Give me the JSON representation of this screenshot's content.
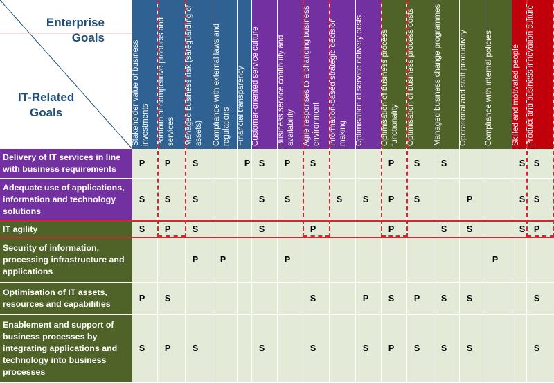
{
  "corner": {
    "enterprise_goals": "Enterprise\nGoals",
    "it_related_goals": "IT-Related\nGoals"
  },
  "colors": {
    "blue": "#2f6293",
    "purple": "#7330a0",
    "green": "#4f6228",
    "red": "#c0000b",
    "cell_bg": "#e3ead8",
    "row_green": "#4f6228",
    "row_purple": "#7330a0",
    "dash": "#e0202a"
  },
  "columns": [
    {
      "label": "Stakeholder value of business investments",
      "color": "blue"
    },
    {
      "label": "Portfolio of competitive products and services",
      "color": "blue"
    },
    {
      "label": "Managed business risk (safeguarding of assets)",
      "color": "blue"
    },
    {
      "label": "Compliance with external laws and regulations",
      "color": "blue"
    },
    {
      "label": "Financial transparency",
      "color": "blue"
    },
    {
      "label": "Customer-oriented service culture",
      "color": "purple"
    },
    {
      "label": "Business service continuity and availability",
      "color": "purple"
    },
    {
      "label": "Agile responses to a changing business environment",
      "color": "purple"
    },
    {
      "label": "Information-based strategic decision making",
      "color": "purple"
    },
    {
      "label": "Optimisation of service delivery costs",
      "color": "purple"
    },
    {
      "label": "Optimisation of business process functionality",
      "color": "green"
    },
    {
      "label": "Optimisation of business process costs",
      "color": "green"
    },
    {
      "label": "Managed business change programmes",
      "color": "green"
    },
    {
      "label": "Operational and staff productivity",
      "color": "green"
    },
    {
      "label": "Compliance with internal policies",
      "color": "green"
    },
    {
      "label": "Skilled and motivated people",
      "color": "red"
    },
    {
      "label": "Product and business innovation culture",
      "color": "red"
    }
  ],
  "rows": [
    {
      "label": "Delivery of IT services in line with business requirements",
      "color": "purple",
      "cells": [
        "P",
        "P",
        "S",
        "",
        "P",
        "S",
        "P",
        "S",
        "",
        "",
        "P",
        "S",
        "S",
        "",
        "",
        "S",
        "S"
      ]
    },
    {
      "label": "Adequate use of applications, information and technology solutions",
      "color": "purple",
      "cells": [
        "S",
        "S",
        "S",
        "",
        "",
        "S",
        "S",
        "",
        "S",
        "S",
        "P",
        "S",
        "",
        "P",
        "",
        "S",
        "S"
      ]
    },
    {
      "label": "IT agility",
      "color": "green",
      "cells": [
        "S",
        "P",
        "S",
        "",
        "",
        "S",
        "",
        "P",
        "",
        "",
        "P",
        "",
        "S",
        "S",
        "",
        "S",
        "P"
      ]
    },
    {
      "label": "Security of information, processing infrastructure and applications",
      "color": "green",
      "cells": [
        "",
        "",
        "P",
        "P",
        "",
        "",
        "P",
        "",
        "",
        "",
        "",
        "",
        "",
        "",
        "P",
        "",
        ""
      ]
    },
    {
      "label": "Optimisation of IT assets, resources and capabilities",
      "color": "green",
      "cells": [
        "P",
        "S",
        "",
        "",
        "",
        "",
        "",
        "S",
        "",
        "P",
        "S",
        "P",
        "S",
        "S",
        "",
        "",
        "S"
      ]
    },
    {
      "label": "Enablement and support of business processes by integrating applications and technology into business processes",
      "color": "green",
      "cells": [
        "S",
        "P",
        "S",
        "",
        "",
        "S",
        "",
        "S",
        "",
        "S",
        "P",
        "S",
        "S",
        "S",
        "",
        "",
        "S"
      ]
    }
  ]
}
